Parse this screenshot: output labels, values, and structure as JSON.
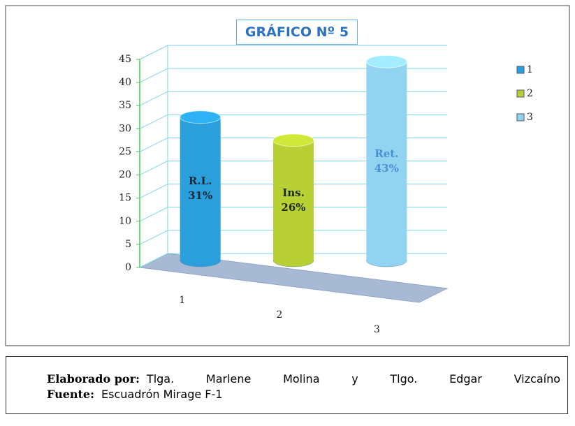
{
  "chart_data": {
    "type": "bar3d",
    "title": "GRÁFICO Nº 5",
    "categories": [
      "1",
      "2",
      "3"
    ],
    "values": [
      31,
      26,
      43
    ],
    "value_labels": [
      "R.L.\n31%",
      "Ins.\n26%",
      "Ret.\n43%"
    ],
    "colors": [
      "#2a9fdb",
      "#b9d035",
      "#92d3f2"
    ],
    "value_label_colors": [
      "#1a2a3a",
      "#1a2a10",
      "#4a8fd0"
    ],
    "ylim": [
      0,
      45
    ],
    "yticks": [
      0,
      5,
      10,
      15,
      20,
      25,
      30,
      35,
      40,
      45
    ],
    "grid": true,
    "legend": "right"
  },
  "caption": {
    "author_label": "Elaborado por:",
    "author": "Tlga. Marlene Molina y Tlgo. Edgar Vizcaíno",
    "source_label": "Fuente:",
    "source": "Escuadrón Mirage F-1"
  }
}
